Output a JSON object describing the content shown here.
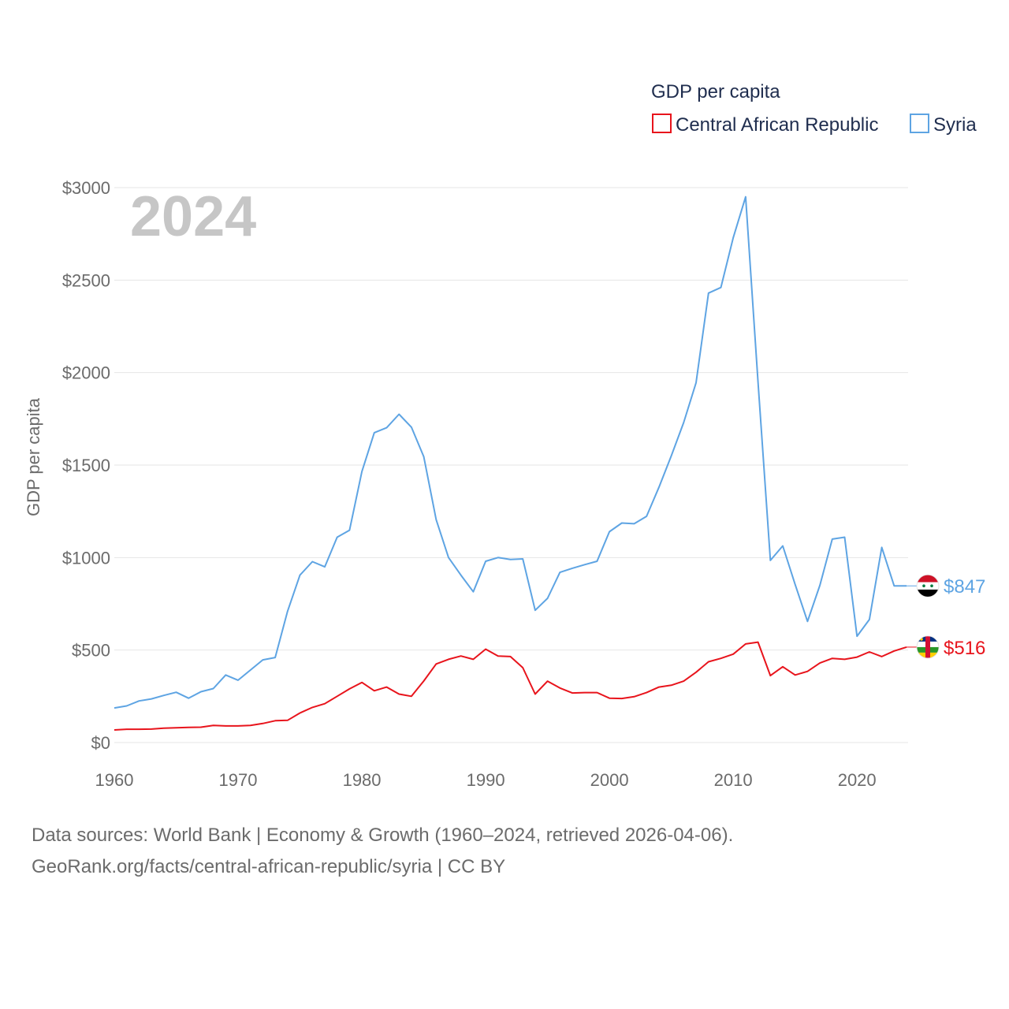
{
  "chart_data": {
    "type": "line",
    "legend_title": "GDP per capita",
    "ylabel": "GDP per capita",
    "year_label": "2024",
    "xlim": [
      1960,
      2024
    ],
    "ylim": [
      0,
      3000
    ],
    "x_ticks": [
      1960,
      1970,
      1980,
      1990,
      2000,
      2010,
      2020
    ],
    "y_ticks": [
      {
        "value": 0,
        "label": "$0"
      },
      {
        "value": 500,
        "label": "$500"
      },
      {
        "value": 1000,
        "label": "$1000"
      },
      {
        "value": 1500,
        "label": "$1500"
      },
      {
        "value": 2000,
        "label": "$2000"
      },
      {
        "value": 2500,
        "label": "$2500"
      },
      {
        "value": 3000,
        "label": "$3000"
      }
    ],
    "x": [
      1960,
      1961,
      1962,
      1963,
      1964,
      1965,
      1966,
      1967,
      1968,
      1969,
      1970,
      1971,
      1972,
      1973,
      1974,
      1975,
      1976,
      1977,
      1978,
      1979,
      1980,
      1981,
      1982,
      1983,
      1984,
      1985,
      1986,
      1987,
      1988,
      1989,
      1990,
      1991,
      1992,
      1993,
      1994,
      1995,
      1996,
      1997,
      1998,
      1999,
      2000,
      2001,
      2002,
      2003,
      2004,
      2005,
      2006,
      2007,
      2008,
      2009,
      2010,
      2011,
      2012,
      2013,
      2014,
      2015,
      2016,
      2017,
      2018,
      2019,
      2020,
      2021,
      2022,
      2023,
      2024
    ],
    "series": [
      {
        "name": "Central African Republic",
        "color": "#e8141c",
        "end_label": "$516",
        "values": [
          68,
          72,
          72,
          73,
          78,
          80,
          82,
          83,
          93,
          90,
          90,
          93,
          103,
          118,
          120,
          160,
          190,
          210,
          250,
          290,
          325,
          280,
          300,
          262,
          250,
          333,
          425,
          450,
          468,
          450,
          505,
          468,
          465,
          405,
          262,
          332,
          295,
          268,
          270,
          270,
          240,
          238,
          248,
          270,
          300,
          310,
          332,
          380,
          437,
          455,
          478,
          533,
          543,
          362,
          410,
          365,
          385,
          430,
          455,
          450,
          462,
          490,
          465,
          495,
          516
        ]
      },
      {
        "name": "Syria",
        "color": "#5ea4e3",
        "end_label": "$847",
        "values": [
          187,
          198,
          225,
          236,
          255,
          272,
          240,
          275,
          292,
          365,
          337,
          392,
          447,
          460,
          710,
          905,
          978,
          950,
          1110,
          1148,
          1465,
          1675,
          1702,
          1775,
          1705,
          1545,
          1205,
          1000,
          905,
          815,
          980,
          1000,
          990,
          993,
          715,
          780,
          920,
          942,
          962,
          980,
          1140,
          1187,
          1183,
          1223,
          1380,
          1550,
          1730,
          1945,
          2430,
          2460,
          2730,
          2950,
          1950,
          985,
          1063,
          855,
          655,
          850,
          1100,
          1110,
          575,
          665,
          1055,
          847,
          847
        ]
      }
    ]
  },
  "footer": {
    "source_line": "Data sources: World Bank | Economy & Growth (1960–2024, retrieved 2026-04-06).",
    "url_line": "GeoRank.org/facts/central-african-republic/syria | CC BY"
  }
}
